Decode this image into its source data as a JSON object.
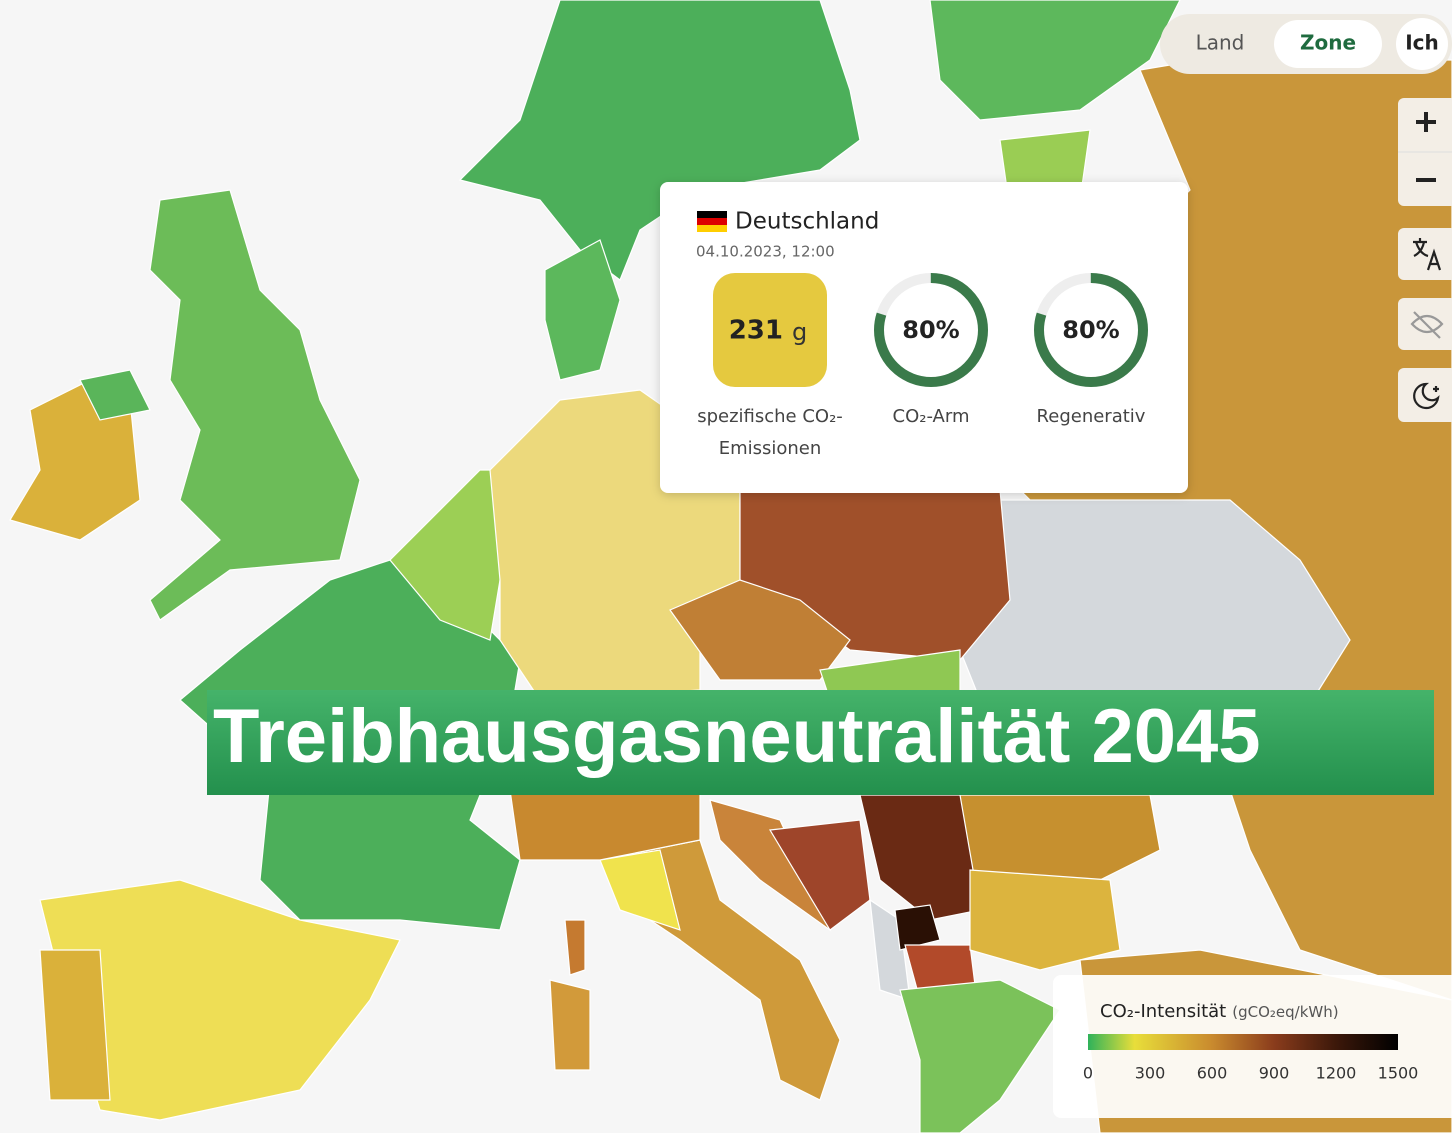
{
  "toggle": {
    "options": [
      "Land",
      "Zone",
      "Ich"
    ]
  },
  "tooltip": {
    "zone": "Deutschland",
    "datetime": "04.10.2023, 12:00",
    "intensity": {
      "value": 231,
      "unit": "g",
      "label": [
        "spezifische CO₂-",
        "Emissionen"
      ]
    },
    "low_carbon": {
      "value": 80,
      "value_label": "80%",
      "label": "CO₂-Arm"
    },
    "renewable": {
      "value": 80,
      "value_label": "80%",
      "label": "Regenerativ"
    }
  },
  "legend": {
    "title": "CO₂-Intensität",
    "unit": "(gCO₂eq/kWh)",
    "range": [
      0,
      1500
    ],
    "ticks": [
      0,
      300,
      600,
      900,
      1200,
      1500
    ]
  },
  "banner": {
    "text": "Treibhausgasneutralität 2045"
  }
}
